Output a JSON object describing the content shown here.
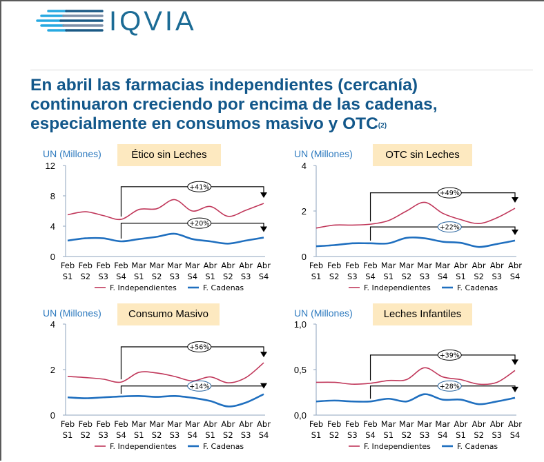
{
  "header": {
    "logo_text": "IQVIA",
    "title": "En abril las farmacias independientes (cercanía) continuaron creciendo por encima de las cadenas, especialmente en consumos masivo y OTC",
    "title_footnote": "(2)"
  },
  "colors": {
    "independientes": "#c0375a",
    "cadenas": "#1f6fbf",
    "category_box": "#fde9c0",
    "title": "#12578a",
    "axis_label": "#2f7bbf"
  },
  "chart_data": [
    {
      "type": "line",
      "title": "Ético sin Leches",
      "ylabel": "UN (Millones)",
      "ylim": [
        0,
        12
      ],
      "yticks": [
        "0",
        "4",
        "8",
        "12"
      ],
      "ytick_values": [
        0,
        4,
        8,
        12
      ],
      "x": [
        "Feb S1",
        "Feb S2",
        "Feb S3",
        "Feb S4",
        "Mar S1",
        "Mar S2",
        "Mar S3",
        "Mar S4",
        "Abr S1",
        "Abr S2",
        "Abr S3",
        "Abr S4"
      ],
      "x_top": [
        "Feb",
        "Feb",
        "Feb",
        "Feb",
        "Mar",
        "Mar",
        "Mar",
        "Mar",
        "Abr",
        "Abr",
        "Abr",
        "Abr"
      ],
      "x_bottom": [
        "S1",
        "S2",
        "S3",
        "S4",
        "S1",
        "S2",
        "S3",
        "S4",
        "S1",
        "S2",
        "S3",
        "S4"
      ],
      "series": [
        {
          "name": "F. Independientes",
          "values": [
            5.5,
            5.9,
            5.4,
            4.9,
            6.2,
            6.3,
            7.5,
            6.0,
            6.6,
            5.3,
            6.1,
            7.0
          ]
        },
        {
          "name": "F. Cadenas",
          "values": [
            2.1,
            2.4,
            2.4,
            2.0,
            2.3,
            2.6,
            3.0,
            2.3,
            2.0,
            1.7,
            2.1,
            2.5
          ]
        }
      ],
      "annotations": [
        {
          "label": "+41%",
          "series": "F. Independientes",
          "from": "Feb S4",
          "to": "Abr S4",
          "level": 9.2,
          "outline": "#000"
        },
        {
          "label": "+20%",
          "series": "F. Cadenas",
          "from": "Feb S4",
          "to": "Abr S4",
          "level": 4.4,
          "outline": "#000"
        }
      ],
      "legend": "bottom",
      "grid": false
    },
    {
      "type": "line",
      "title": "OTC sin Leches",
      "ylabel": "UN (Millones)",
      "ylim": [
        0,
        4
      ],
      "yticks": [
        "0",
        "2",
        "4"
      ],
      "ytick_values": [
        0,
        2,
        4
      ],
      "x": [
        "Feb S1",
        "Feb S2",
        "Feb S3",
        "Feb S4",
        "Mar S1",
        "Mar S2",
        "Mar S3",
        "Mar S4",
        "Abr S1",
        "Abr S2",
        "Abr S3",
        "Abr S4"
      ],
      "x_top": [
        "Feb",
        "Feb",
        "Feb",
        "Feb",
        "Mar",
        "Mar",
        "Mar",
        "Mar",
        "Abr",
        "Abr",
        "Abr",
        "Abr"
      ],
      "x_bottom": [
        "S1",
        "S2",
        "S3",
        "S4",
        "S1",
        "S2",
        "S3",
        "S4",
        "S1",
        "S2",
        "S3",
        "S4"
      ],
      "series": [
        {
          "name": "F. Independientes",
          "values": [
            1.25,
            1.38,
            1.38,
            1.42,
            1.58,
            2.0,
            2.38,
            1.9,
            1.62,
            1.45,
            1.7,
            2.12
          ]
        },
        {
          "name": "F. Cadenas",
          "values": [
            0.45,
            0.5,
            0.58,
            0.58,
            0.58,
            0.82,
            0.8,
            0.65,
            0.6,
            0.42,
            0.55,
            0.7
          ]
        }
      ],
      "annotations": [
        {
          "label": "+49%",
          "series": "F. Independientes",
          "from": "Feb S4",
          "to": "Abr S4",
          "level": 2.8,
          "outline": "#000"
        },
        {
          "label": "+22%",
          "series": "F. Cadenas",
          "from": "Feb S4",
          "to": "Abr S4",
          "level": 1.3,
          "outline": "#1f5d9a"
        }
      ],
      "legend": "bottom",
      "grid": false
    },
    {
      "type": "line",
      "title": "Consumo Masivo",
      "ylabel": "UN (Millones)",
      "ylim": [
        0,
        4
      ],
      "yticks": [
        "0",
        "2",
        "4"
      ],
      "ytick_values": [
        0,
        2,
        4
      ],
      "x": [
        "Feb S1",
        "Feb S2",
        "Feb S3",
        "Feb S4",
        "Mar S1",
        "Mar S2",
        "Mar S3",
        "Mar S4",
        "Abr S1",
        "Abr S2",
        "Abr S3",
        "Abr S4"
      ],
      "x_top": [
        "Feb",
        "Feb",
        "Feb",
        "Feb",
        "Mar",
        "Mar",
        "Mar",
        "Mar",
        "Abr",
        "Abr",
        "Abr",
        "Abr"
      ],
      "x_bottom": [
        "S1",
        "S2",
        "S3",
        "S4",
        "S1",
        "S2",
        "S3",
        "S4",
        "S1",
        "S2",
        "S3",
        "S4"
      ],
      "series": [
        {
          "name": "F. Independientes",
          "values": [
            1.7,
            1.65,
            1.58,
            1.45,
            1.88,
            1.85,
            1.7,
            1.5,
            1.68,
            1.42,
            1.65,
            2.3
          ]
        },
        {
          "name": "F. Cadenas",
          "values": [
            0.78,
            0.74,
            0.78,
            0.82,
            0.84,
            0.8,
            0.84,
            0.76,
            0.62,
            0.38,
            0.55,
            0.92
          ]
        }
      ],
      "annotations": [
        {
          "label": "+56%",
          "series": "F. Independientes",
          "from": "Feb S4",
          "to": "Abr S4",
          "level": 3.0,
          "outline": "#000"
        },
        {
          "label": "+14%",
          "series": "F. Cadenas",
          "from": "Feb S4",
          "to": "Abr S4",
          "level": 1.28,
          "outline": "#1f5d9a"
        }
      ],
      "legend": "bottom",
      "grid": false
    },
    {
      "type": "line",
      "title": "Leches Infantiles",
      "ylabel": "UN (Millones)",
      "ylim": [
        0,
        1
      ],
      "yticks": [
        "0,0",
        "0,5",
        "1,0"
      ],
      "ytick_values": [
        0,
        0.5,
        1
      ],
      "x": [
        "Feb S1",
        "Feb S2",
        "Feb S3",
        "Feb S4",
        "Mar S1",
        "Mar S2",
        "Mar S3",
        "Mar S4",
        "Abr S1",
        "Abr S2",
        "Abr S3",
        "Abr S4"
      ],
      "x_top": [
        "Feb",
        "Feb",
        "Feb",
        "Feb",
        "Mar",
        "Mar",
        "Mar",
        "Mar",
        "Abr",
        "Abr",
        "Abr",
        "Abr"
      ],
      "x_bottom": [
        "S1",
        "S2",
        "S3",
        "S4",
        "S1",
        "S2",
        "S3",
        "S4",
        "S1",
        "S2",
        "S3",
        "S4"
      ],
      "series": [
        {
          "name": "F. Independientes",
          "values": [
            0.36,
            0.36,
            0.34,
            0.35,
            0.38,
            0.39,
            0.52,
            0.42,
            0.39,
            0.34,
            0.36,
            0.49
          ]
        },
        {
          "name": "F. Cadenas",
          "values": [
            0.15,
            0.16,
            0.15,
            0.15,
            0.18,
            0.15,
            0.23,
            0.17,
            0.17,
            0.12,
            0.15,
            0.19
          ]
        }
      ],
      "annotations": [
        {
          "label": "+39%",
          "series": "F. Independientes",
          "from": "Feb S4",
          "to": "Abr S4",
          "level": 0.66,
          "outline": "#000"
        },
        {
          "label": "+28%",
          "series": "F. Cadenas",
          "from": "Feb S4",
          "to": "Abr S4",
          "level": 0.32,
          "outline": "#1f5d9a"
        }
      ],
      "legend": "bottom",
      "grid": false
    }
  ]
}
